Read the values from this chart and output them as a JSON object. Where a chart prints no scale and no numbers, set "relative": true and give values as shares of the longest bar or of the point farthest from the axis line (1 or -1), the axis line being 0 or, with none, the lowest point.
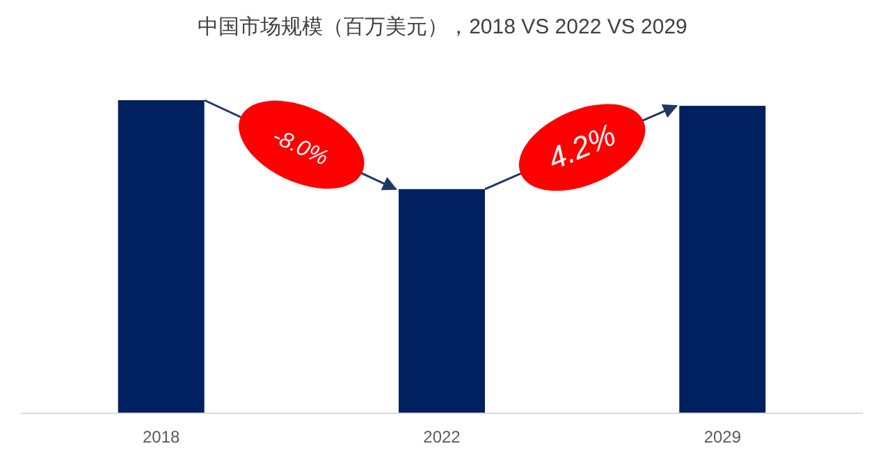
{
  "chart_data": {
    "type": "bar",
    "relative": true,
    "title": "中国市场规模（百万美元），2018 VS 2022 VS 2029",
    "categories": [
      "2018",
      "2022",
      "2029"
    ],
    "values": [
      1,
      0.716,
      0.982
    ],
    "color": "#002060",
    "annotations": [
      "-8.0%",
      "4.2%"
    ]
  }
}
